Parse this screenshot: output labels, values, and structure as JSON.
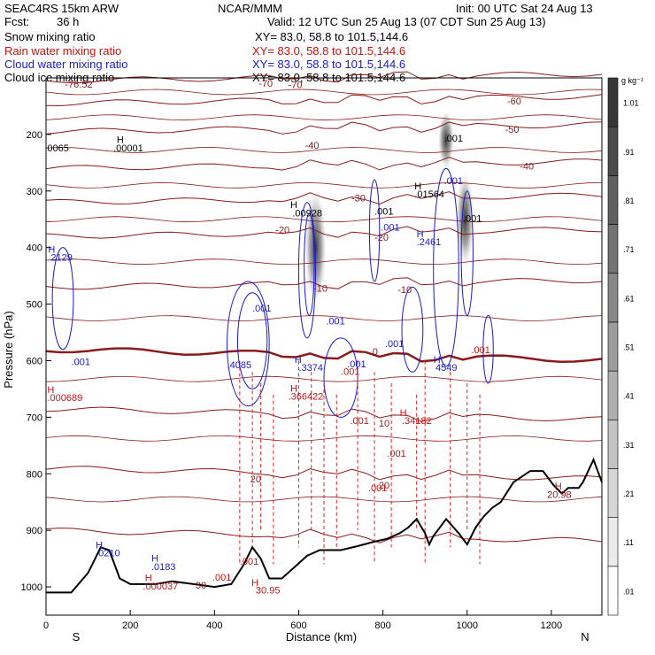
{
  "header": {
    "model": "SEAC4RS 15km ARW",
    "org": "NCAR/MMM",
    "init": "Init: 00 UTC Sat 24 Aug 13",
    "fcst_label": "Fcst:",
    "fcst_value": "36 h",
    "valid": "Valid: 12 UTC Sun 25 Aug 13 (07 CDT Sun 25 Aug 13)"
  },
  "legend": [
    {
      "name": "Snow mixing ratio",
      "xy": "XY=  83.0, 58.8 to 101.5,144.6",
      "color": "#000000"
    },
    {
      "name": "Rain water mixing ratio",
      "xy": "XY=  83.0, 58.8 to 101.5,144.6",
      "color": "#cc1111"
    },
    {
      "name": "Cloud water mixing ratio",
      "xy": "XY=  83.0, 58.8 to 101.5,144.6",
      "color": "#1a1ad0"
    },
    {
      "name": "Cloud ice mixing ratio",
      "xy": "XY=  83.0, 58.8 to 101.5,144.6",
      "color": "#000000"
    }
  ],
  "chart_data": {
    "type": "cross-section",
    "xlabel": "Distance (km)",
    "ylabel": "Pressure (hPa)",
    "xlim": [
      0,
      1320
    ],
    "ylim": [
      1050,
      100
    ],
    "xticks": [
      0,
      200,
      400,
      600,
      800,
      1000,
      1200
    ],
    "xtick_labels": [
      "0",
      "200",
      "400",
      "600",
      "800",
      "1000",
      "1200"
    ],
    "yticks": [
      200,
      300,
      400,
      500,
      600,
      700,
      800,
      900,
      1000
    ],
    "ytick_labels": [
      "200",
      "300",
      "400",
      "500",
      "600",
      "700",
      "800",
      "900",
      "1000"
    ],
    "end_labels": {
      "left": "S",
      "right": "N"
    },
    "colorbar": {
      "unit": "g kg⁻¹",
      "labels": [
        ".01",
        ".11",
        ".21",
        ".31",
        ".41",
        ".51",
        ".61",
        ".71",
        ".81",
        ".91",
        "1.01"
      ]
    },
    "terrain": [
      [
        0,
        1010
      ],
      [
        60,
        1010
      ],
      [
        100,
        975
      ],
      [
        130,
        930
      ],
      [
        150,
        935
      ],
      [
        175,
        985
      ],
      [
        200,
        995
      ],
      [
        260,
        995
      ],
      [
        300,
        990
      ],
      [
        350,
        995
      ],
      [
        400,
        1000
      ],
      [
        440,
        995
      ],
      [
        470,
        960
      ],
      [
        490,
        930
      ],
      [
        510,
        950
      ],
      [
        530,
        985
      ],
      [
        560,
        985
      ],
      [
        590,
        965
      ],
      [
        620,
        945
      ],
      [
        650,
        935
      ],
      [
        700,
        935
      ],
      [
        740,
        928
      ],
      [
        780,
        920
      ],
      [
        810,
        915
      ],
      [
        840,
        905
      ],
      [
        860,
        895
      ],
      [
        880,
        880
      ],
      [
        900,
        905
      ],
      [
        910,
        925
      ],
      [
        920,
        910
      ],
      [
        950,
        880
      ],
      [
        980,
        905
      ],
      [
        1000,
        925
      ],
      [
        1020,
        895
      ],
      [
        1040,
        875
      ],
      [
        1060,
        860
      ],
      [
        1080,
        850
      ],
      [
        1110,
        815
      ],
      [
        1150,
        795
      ],
      [
        1180,
        795
      ],
      [
        1205,
        820
      ],
      [
        1225,
        835
      ],
      [
        1240,
        825
      ],
      [
        1265,
        825
      ],
      [
        1275,
        815
      ],
      [
        1300,
        775
      ],
      [
        1320,
        815
      ]
    ],
    "temperature_contours": [
      {
        "label": "-70",
        "p": 105
      },
      {
        "label": "-60",
        "p": 145
      },
      {
        "label": "-50",
        "p": 195
      },
      {
        "label": "-40",
        "p": 260
      },
      {
        "label": "-30",
        "p": 320
      },
      {
        "label": "-20",
        "p": 380
      },
      {
        "label": "-10",
        "p": 470
      },
      {
        "label": "0",
        "p": 580
      },
      {
        "label": "10",
        "p": 685
      },
      {
        "label": "20",
        "p": 790
      },
      {
        "label": "30",
        "p": 900
      }
    ],
    "annotations": [
      {
        "text": "-76.52",
        "x": 45,
        "p": 117,
        "color": "#8b1a1a"
      },
      {
        "text": "-70",
        "x": 505,
        "p": 116,
        "color": "#8b1a1a"
      },
      {
        "text": "-70",
        "x": 575,
        "p": 118,
        "color": "#8b1a1a"
      },
      {
        "text": "-60",
        "x": 1095,
        "p": 147,
        "color": "#8b1a1a"
      },
      {
        "text": "-50",
        "x": 1090,
        "p": 197,
        "color": "#8b1a1a"
      },
      {
        "text": "-40",
        "x": 615,
        "p": 225,
        "color": "#8b1a1a"
      },
      {
        "text": "-40",
        "x": 1125,
        "p": 262,
        "color": "#8b1a1a"
      },
      {
        "text": "-30",
        "x": 725,
        "p": 318,
        "color": "#8b1a1a"
      },
      {
        "text": "-20",
        "x": 545,
        "p": 375,
        "color": "#8b1a1a"
      },
      {
        "text": "-20",
        "x": 780,
        "p": 388,
        "color": "#8b1a1a"
      },
      {
        "text": "-10",
        "x": 635,
        "p": 478,
        "color": "#8b1a1a"
      },
      {
        "text": "-10",
        "x": 835,
        "p": 480,
        "color": "#8b1a1a"
      },
      {
        "text": "0",
        "x": 775,
        "p": 590,
        "color": "#8b1a1a"
      },
      {
        "text": "10",
        "x": 790,
        "p": 717,
        "color": "#8b1a1a"
      },
      {
        "text": "20",
        "x": 485,
        "p": 815,
        "color": "#8b1a1a"
      },
      {
        "text": "20",
        "x": 790,
        "p": 826,
        "color": "#8b1a1a"
      },
      {
        "text": "30",
        "x": 355,
        "p": 1003,
        "color": "#8b1a1a"
      },
      {
        "text": "0065",
        "x": 3,
        "p": 230,
        "color": "#000"
      },
      {
        "text": "H",
        "x": 168,
        "p": 215,
        "color": "#000"
      },
      {
        "text": ".00001",
        "x": 160,
        "p": 230,
        "color": "#000"
      },
      {
        "text": "H",
        "x": 580,
        "p": 330,
        "color": "#000"
      },
      {
        "text": ".00928",
        "x": 585,
        "p": 345,
        "color": "#000"
      },
      {
        "text": ".001",
        "x": 945,
        "p": 213,
        "color": "#000"
      },
      {
        "text": "H",
        "x": 875,
        "p": 297,
        "color": "#000"
      },
      {
        "text": ".01564",
        "x": 875,
        "p": 311,
        "color": "#000"
      },
      {
        "text": ".001",
        "x": 780,
        "p": 342,
        "color": "#000"
      },
      {
        "text": ".001",
        "x": 990,
        "p": 354,
        "color": "#000"
      },
      {
        "text": "H",
        "x": 5,
        "p": 409,
        "color": "#1a1ad0"
      },
      {
        "text": ".2129",
        "x": 5,
        "p": 423,
        "color": "#1a1ad0"
      },
      {
        "text": ".001",
        "x": 795,
        "p": 370,
        "color": "#1a1ad0"
      },
      {
        "text": ".001",
        "x": 945,
        "p": 288,
        "color": "#1a1ad0"
      },
      {
        "text": "H",
        "x": 880,
        "p": 382,
        "color": "#1a1ad0"
      },
      {
        "text": ".2461",
        "x": 880,
        "p": 396,
        "color": "#1a1ad0"
      },
      {
        "text": ".001",
        "x": 490,
        "p": 513,
        "color": "#1a1ad0"
      },
      {
        "text": ".001",
        "x": 665,
        "p": 536,
        "color": "#1a1ad0"
      },
      {
        "text": ".001",
        "x": 805,
        "p": 576,
        "color": "#1a1ad0"
      },
      {
        "text": ".4085",
        "x": 430,
        "p": 613,
        "color": "#1a1ad0"
      },
      {
        "text": "H",
        "x": 590,
        "p": 604,
        "color": "#1a1ad0"
      },
      {
        "text": ".3374",
        "x": 600,
        "p": 618,
        "color": "#1a1ad0"
      },
      {
        "text": ".001",
        "x": 715,
        "p": 612,
        "color": "#1a1ad0"
      },
      {
        "text": "H",
        "x": 920,
        "p": 604,
        "color": "#1a1ad0"
      },
      {
        "text": "4549",
        "x": 925,
        "p": 618,
        "color": "#1a1ad0"
      },
      {
        "text": ".001",
        "x": 60,
        "p": 608,
        "color": "#1a1ad0"
      },
      {
        "text": "H",
        "x": 118,
        "p": 932,
        "color": "#1a1ad0"
      },
      {
        "text": ".0210",
        "x": 118,
        "p": 946,
        "color": "#1a1ad0"
      },
      {
        "text": "H",
        "x": 250,
        "p": 955,
        "color": "#1a1ad0"
      },
      {
        "text": ".0183",
        "x": 250,
        "p": 970,
        "color": "#1a1ad0"
      },
      {
        "text": "H",
        "x": 3,
        "p": 657,
        "color": "#cc1111"
      },
      {
        "text": ".000689",
        "x": 3,
        "p": 671,
        "color": "#cc1111"
      },
      {
        "text": ".001",
        "x": 1010,
        "p": 587,
        "color": "#cc1111"
      },
      {
        "text": ".001",
        "x": 700,
        "p": 625,
        "color": "#cc1111"
      },
      {
        "text": "H",
        "x": 580,
        "p": 655,
        "color": "#cc1111"
      },
      {
        "text": ".366422",
        "x": 575,
        "p": 669,
        "color": "#cc1111"
      },
      {
        "text": "H",
        "x": 840,
        "p": 698,
        "color": "#cc1111"
      },
      {
        "text": ".34182",
        "x": 845,
        "p": 712,
        "color": "#cc1111"
      },
      {
        "text": ".001",
        "x": 722,
        "p": 712,
        "color": "#cc1111"
      },
      {
        "text": ".001",
        "x": 810,
        "p": 770,
        "color": "#cc1111"
      },
      {
        "text": ".001",
        "x": 765,
        "p": 831,
        "color": "#cc1111"
      },
      {
        "text": ".001",
        "x": 460,
        "p": 961,
        "color": "#cc1111"
      },
      {
        "text": ".001",
        "x": 395,
        "p": 989,
        "color": "#cc1111"
      },
      {
        "text": "H",
        "x": 488,
        "p": 998,
        "color": "#cc1111"
      },
      {
        "text": "30.95",
        "x": 498,
        "p": 1012,
        "color": "#cc1111"
      },
      {
        "text": "H",
        "x": 235,
        "p": 990,
        "color": "#cc1111"
      },
      {
        "text": ".000037",
        "x": 230,
        "p": 1005,
        "color": "#cc1111"
      },
      {
        "text": "H",
        "x": 1208,
        "p": 828,
        "color": "#8b1a1a"
      },
      {
        "text": "20.98",
        "x": 1190,
        "p": 843,
        "color": "#8b1a1a"
      }
    ]
  }
}
